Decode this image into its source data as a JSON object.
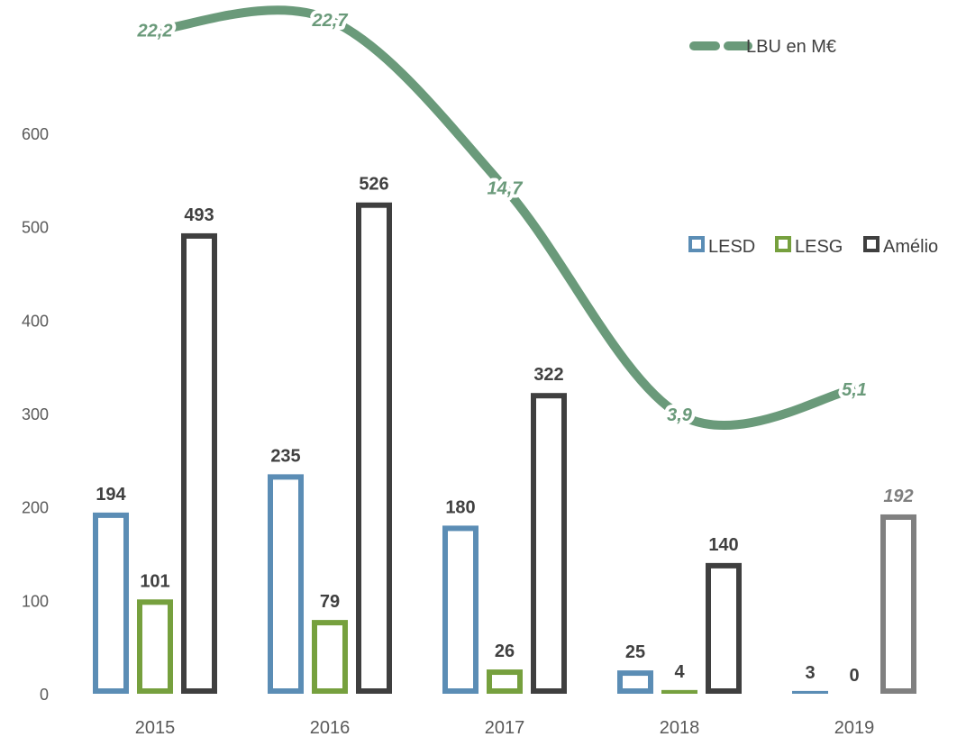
{
  "chart_data": {
    "type": "bar",
    "categories": [
      "2015",
      "2016",
      "2017",
      "2018",
      "2019"
    ],
    "ylim": [
      0,
      600
    ],
    "y_ticks": [
      "0",
      "100",
      "200",
      "300",
      "400",
      "500",
      "600"
    ],
    "grid": false,
    "series": [
      {
        "name": "LESD",
        "color": "#5b8db5",
        "values": [
          194,
          235,
          180,
          25,
          3
        ],
        "labels": [
          "194",
          "235",
          "180",
          "25",
          "3"
        ]
      },
      {
        "name": "LESG",
        "color": "#76a03e",
        "values": [
          101,
          79,
          26,
          4,
          0
        ],
        "labels": [
          "101",
          "79",
          "26",
          "4",
          "0"
        ]
      },
      {
        "name": "Amélio",
        "color": "#3f3f3f",
        "projected_color": "#808080",
        "values": [
          493,
          526,
          322,
          140,
          192
        ],
        "labels": [
          "493",
          "526",
          "322",
          "140",
          "192"
        ],
        "projected": [
          false,
          false,
          false,
          false,
          true
        ]
      }
    ],
    "line_series": {
      "name": "LBU en M€",
      "color": "#6a9a7a",
      "values": [
        22.2,
        22.7,
        14.7,
        3.9,
        5.1
      ],
      "labels": [
        "22,2",
        "22,7",
        "14,7",
        "3,9",
        "5,1"
      ]
    },
    "legend_bars_position": "right",
    "legend_line_position": "top-right"
  }
}
